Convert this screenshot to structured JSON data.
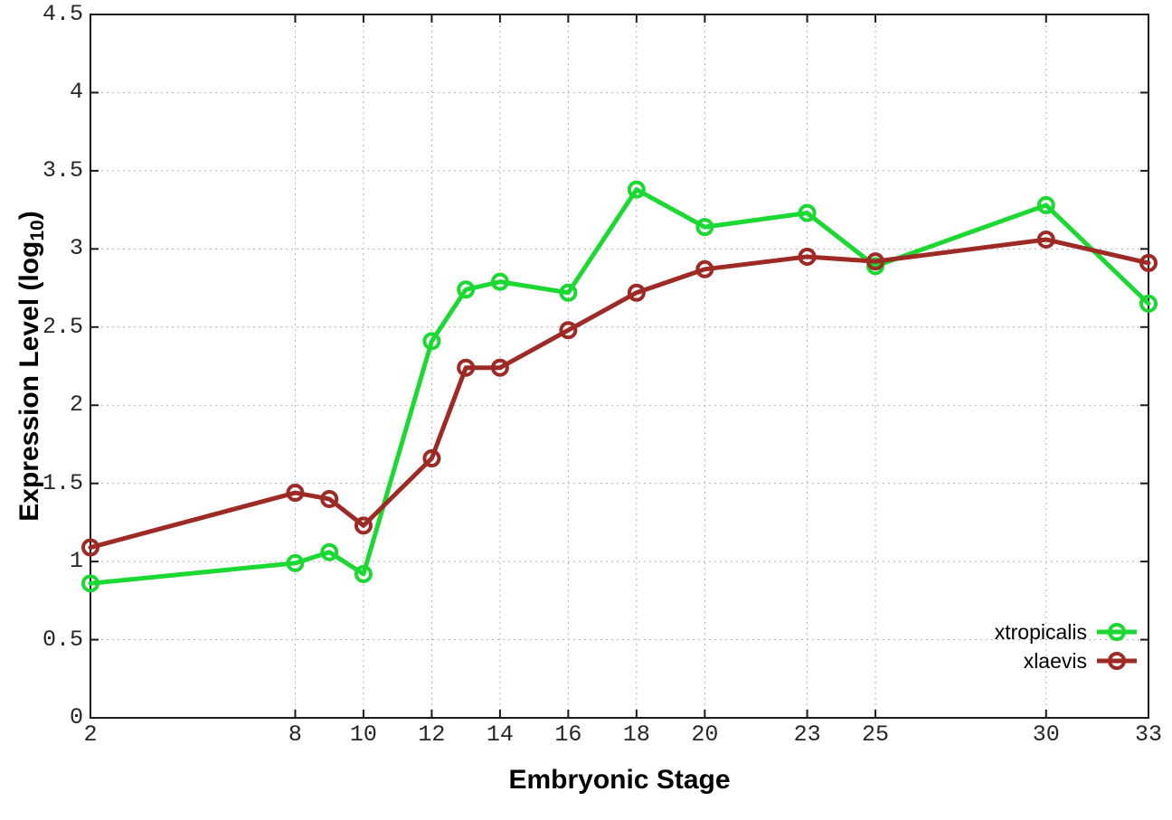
{
  "figure_title": "",
  "chart_data": {
    "type": "line",
    "title": "",
    "xlabel": "Embryonic Stage",
    "ylabel": "Expression Level (log10)",
    "ylabel_parts": {
      "prefix": "Expression Level (log",
      "sub": "10",
      "suffix": ")"
    },
    "x": [
      2,
      8,
      9,
      10,
      12,
      13,
      14,
      16,
      18,
      20,
      23,
      25,
      30,
      33
    ],
    "xtick_labels": [
      "2",
      "8",
      "10",
      "12",
      "14",
      "16",
      "18",
      "20",
      "23",
      "25",
      "30",
      "33"
    ],
    "xtick_values": [
      2,
      8,
      10,
      12,
      14,
      16,
      18,
      20,
      23,
      25,
      30,
      33
    ],
    "yticks": [
      0,
      0.5,
      1,
      1.5,
      2,
      2.5,
      3,
      3.5,
      4,
      4.5
    ],
    "ytick_labels": [
      "0",
      "0.5",
      "1",
      "1.5",
      "2",
      "2.5",
      "3",
      "3.5",
      "4",
      "4.5"
    ],
    "xlim": [
      2,
      33
    ],
    "ylim": [
      0,
      4.5
    ],
    "grid": true,
    "legend_position": "inside-bottom-right",
    "series": [
      {
        "name": "xtropicalis",
        "color": "#1cd832",
        "values": [
          0.86,
          0.99,
          1.06,
          0.92,
          2.41,
          2.74,
          2.79,
          2.72,
          3.38,
          3.14,
          3.23,
          2.89,
          3.28,
          2.65
        ]
      },
      {
        "name": "xlaevis",
        "color": "#9e2a25",
        "values": [
          1.09,
          1.44,
          1.4,
          1.23,
          1.66,
          2.24,
          2.24,
          2.48,
          2.72,
          2.87,
          2.95,
          2.92,
          3.06,
          2.91
        ]
      }
    ],
    "style": {
      "grid_color": "#b4b4b4",
      "axis_color": "#1a1a1a",
      "tick_text_color": "#262626",
      "line_width": 5,
      "marker_radius": 8,
      "marker_stroke": 4
    }
  }
}
